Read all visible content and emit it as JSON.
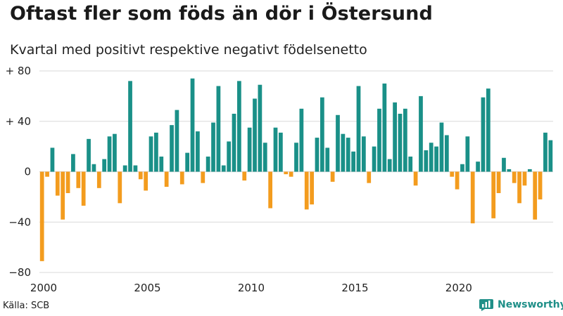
{
  "header": {
    "title": "Oftast fler som föds än dör i Östersund",
    "subtitle": "Kvartal med positivt respektive negativt födelsenetto"
  },
  "footer": {
    "source": "Källa: SCB",
    "brand": "Newsworthy"
  },
  "colors": {
    "positive": "#1a9088",
    "negative": "#f39c1e",
    "grid": "#d9d9d9",
    "axis_text": "#222222",
    "brand": "#1f8f88"
  },
  "chart_data": {
    "type": "bar",
    "title": "Oftast fler som föds än dör i Östersund",
    "subtitle": "Kvartal med positivt respektive negativt födelsenetto",
    "xlabel": "",
    "ylabel": "",
    "ylim": [
      -80,
      80
    ],
    "yticks": [
      {
        "value": 80,
        "label": "+ 80"
      },
      {
        "value": 40,
        "label": "+ 40"
      },
      {
        "value": 0,
        "label": "0"
      },
      {
        "value": -40,
        "label": "−40"
      },
      {
        "value": -80,
        "label": "−80"
      }
    ],
    "xticks": [
      {
        "year": 2000,
        "label": "2000"
      },
      {
        "year": 2005,
        "label": "2005"
      },
      {
        "year": 2010,
        "label": "2010"
      },
      {
        "year": 2015,
        "label": "2015"
      },
      {
        "year": 2020,
        "label": "2020"
      }
    ],
    "start_year": 2000,
    "start_quarter": 1,
    "values": [
      -71,
      -4,
      19,
      -19,
      -38,
      -17,
      14,
      -13,
      -27,
      26,
      6,
      -13,
      10,
      28,
      30,
      -25,
      5,
      72,
      5,
      -6,
      -15,
      28,
      31,
      12,
      -12,
      37,
      49,
      -10,
      15,
      74,
      32,
      -9,
      12,
      39,
      68,
      5,
      24,
      46,
      72,
      -7,
      35,
      58,
      69,
      23,
      -29,
      35,
      31,
      -2,
      -4,
      23,
      50,
      -30,
      -26,
      27,
      59,
      19,
      -8,
      45,
      30,
      27,
      16,
      68,
      28,
      -9,
      20,
      50,
      70,
      10,
      55,
      46,
      50,
      12,
      -11,
      60,
      17,
      23,
      20,
      39,
      29,
      -4,
      -14,
      6,
      28,
      -41,
      8,
      59,
      66,
      -37,
      -17,
      11,
      2,
      -9,
      -25,
      -11,
      2,
      -38,
      -22,
      31,
      25
    ]
  }
}
